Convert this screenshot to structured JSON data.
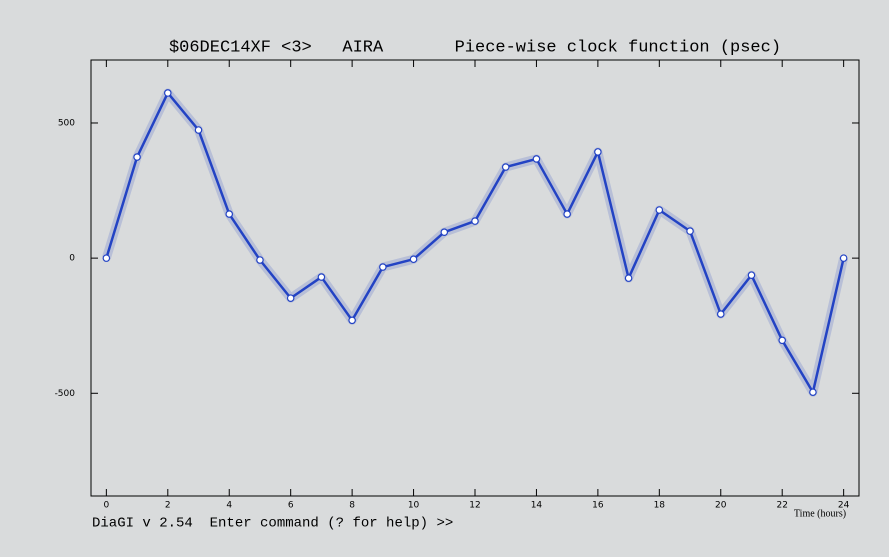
{
  "chart_data": {
    "type": "line",
    "title": "$06DEC14XF <3>   AIRA       Piece-wise clock function (psec)",
    "x_label": "Time (hours)",
    "x": [
      0,
      1,
      2,
      3,
      4,
      5,
      6,
      7,
      8,
      9,
      10,
      11,
      12,
      13,
      14,
      15,
      16,
      17,
      18,
      19,
      20,
      21,
      22,
      23,
      24
    ],
    "series": [
      {
        "color": "#2343c4",
        "values": [
          0,
          374,
          611,
          474,
          163,
          -7,
          -148,
          -70,
          -230,
          -33,
          -4,
          96,
          137,
          337,
          367,
          163,
          393,
          -74,
          178,
          100,
          -207,
          -63,
          -304,
          -496,
          0
        ]
      }
    ],
    "xlim": [
      -0.5,
      24.5
    ],
    "xticks": [
      0,
      2,
      4,
      6,
      8,
      10,
      12,
      14,
      16,
      18,
      20,
      22,
      24
    ],
    "ylim": [
      -880,
      733
    ],
    "yticks": [
      -500,
      0,
      500
    ]
  },
  "footer": {
    "prompt": "DiaGI v 2.54  Enter command (? for help) >>"
  }
}
